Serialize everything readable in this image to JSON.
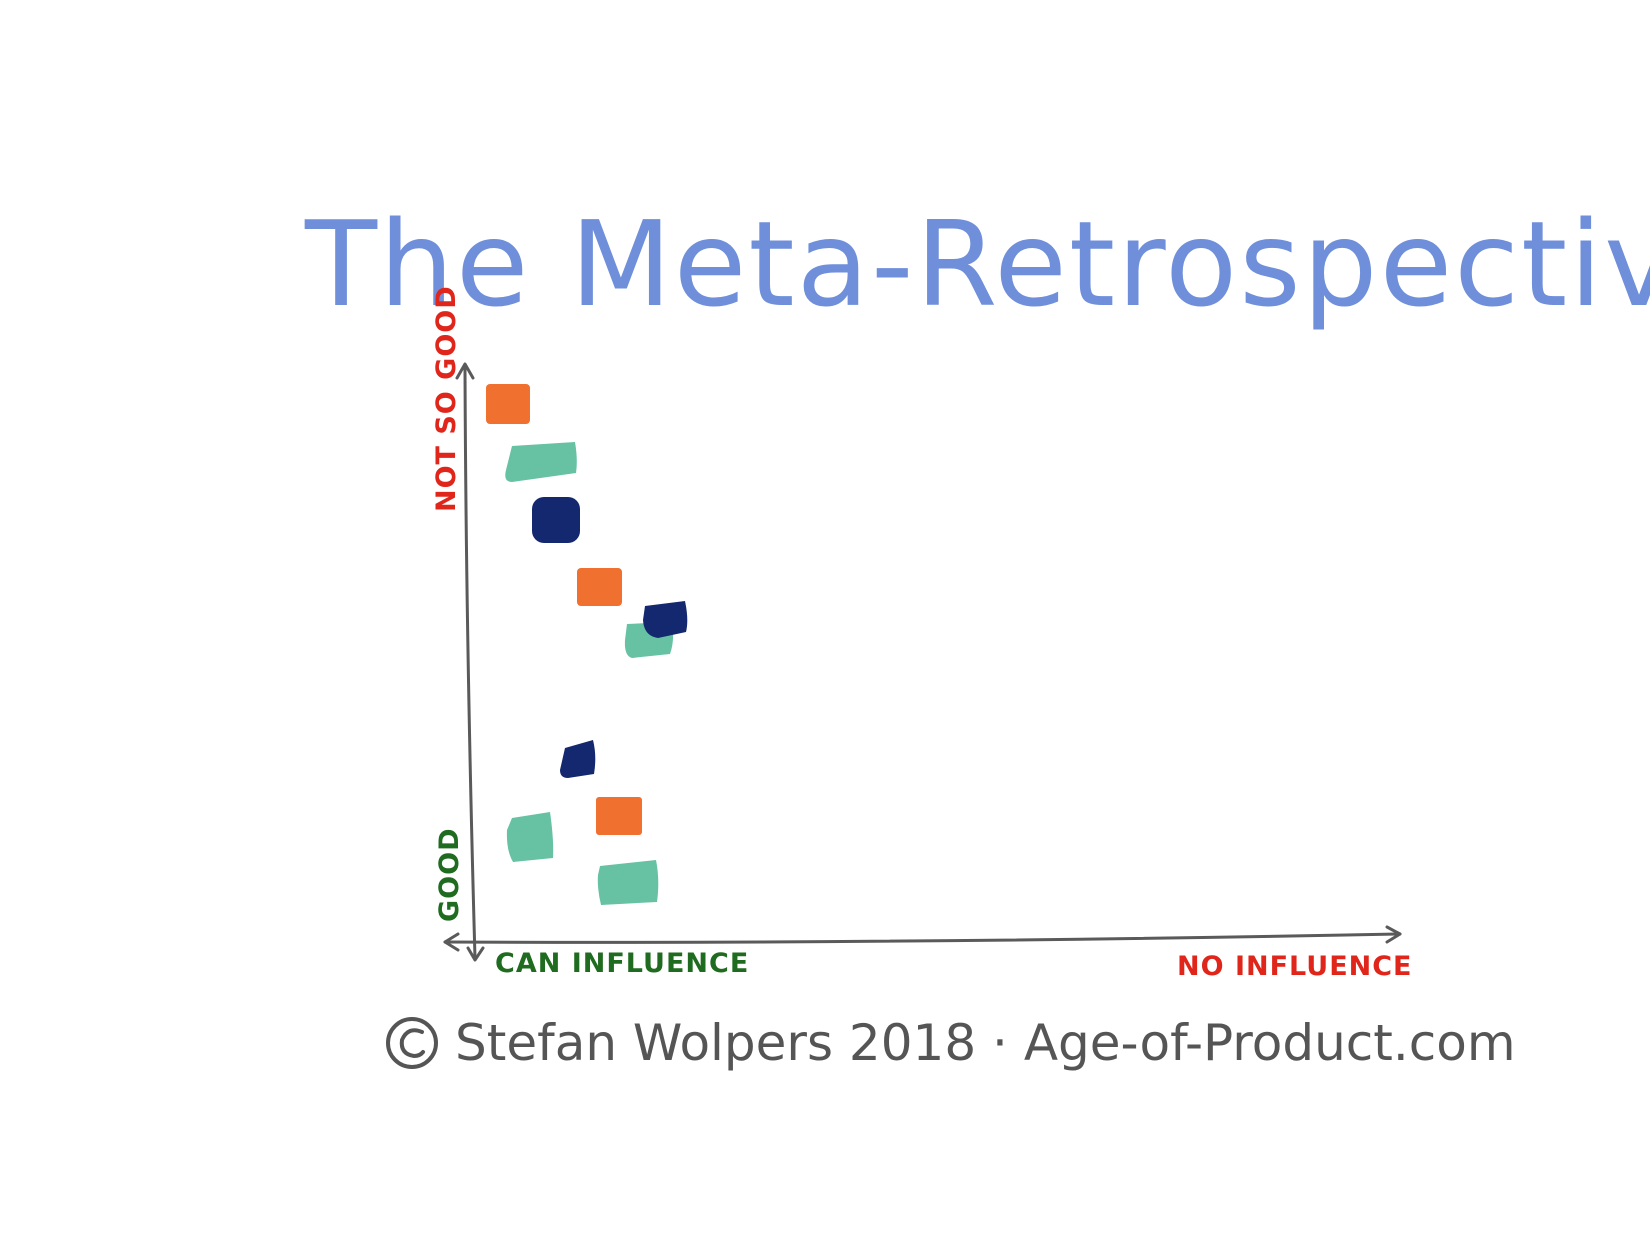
{
  "title": "The Meta-Retrospective",
  "axes": {
    "y_top_label": "NOT SO GOOD",
    "y_bottom_label": "GOOD",
    "x_left_label": "CAN INFLUENCE",
    "x_right_label": "NO INFLUENCE"
  },
  "footer": {
    "copyright_symbol": "©",
    "text": "Stefan Wolpers 2018 · Age-of-Product.com"
  },
  "colors": {
    "title": "#6f8fdb",
    "axis_line": "#5a5a5a",
    "bad_label": "#e0251b",
    "good_label": "#1f6b1f",
    "orange": "#f07030",
    "teal": "#66c2a2",
    "navy": "#13286e",
    "footer": "#555555"
  },
  "icons": {
    "copyright": "copyright-circle-icon"
  }
}
